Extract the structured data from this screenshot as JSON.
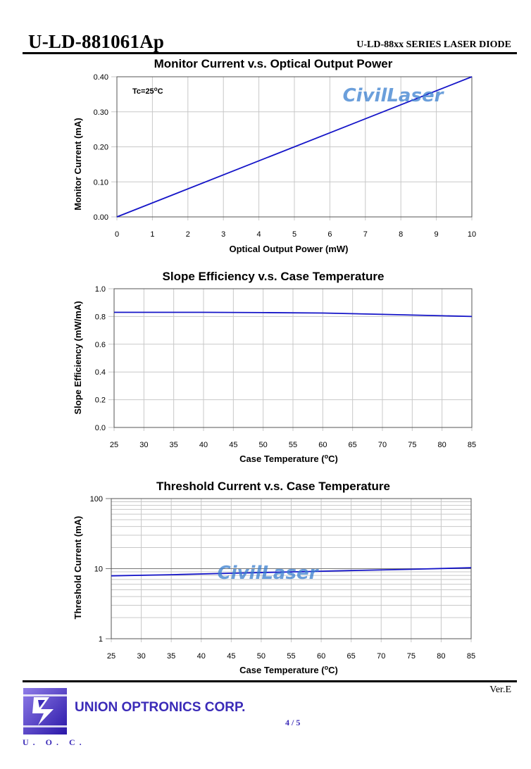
{
  "header": {
    "title": "U-LD-881061Ap",
    "series": "U-LD-88xx SERIES LASER DIODE"
  },
  "watermark": {
    "text": "CivilLaser",
    "color": "#3a7fd0"
  },
  "colors": {
    "series": "#1515c8",
    "grid": "#c8c8c8",
    "axis": "#555555"
  },
  "chart_data": [
    {
      "type": "line",
      "title": "Monitor Current v.s. Optical Output Power",
      "xlabel": "Optical Output Power (mW)",
      "ylabel": "Monitor Current (mA)",
      "xlim": [
        0,
        10
      ],
      "ylim": [
        0,
        0.4
      ],
      "x_ticks": [
        "0",
        "1",
        "2",
        "3",
        "4",
        "5",
        "6",
        "7",
        "8",
        "9",
        "10"
      ],
      "y_ticks": [
        "0.00",
        "0.10",
        "0.20",
        "0.30",
        "0.40"
      ],
      "annotation": "Tc=25",
      "annotation_unit": "C",
      "annotation_degree": "o",
      "series": [
        {
          "x": [
            0,
            10
          ],
          "y": [
            0.0,
            0.4
          ]
        }
      ],
      "grid": true
    },
    {
      "type": "line",
      "title": "Slope Efficiency v.s. Case Temperature",
      "xlabel": "Case Temperature (",
      "xlabel_degree": "o",
      "xlabel_end": "C)",
      "ylabel": "Slope Efficiency (mW/mA)",
      "xlim": [
        25,
        85
      ],
      "ylim": [
        0,
        1.0
      ],
      "x_ticks": [
        "25",
        "30",
        "35",
        "40",
        "45",
        "50",
        "55",
        "60",
        "65",
        "70",
        "75",
        "80",
        "85"
      ],
      "y_ticks": [
        "0.0",
        "0.2",
        "0.4",
        "0.6",
        "0.8",
        "1.0"
      ],
      "series": [
        {
          "x": [
            25,
            40,
            50,
            60,
            70,
            80,
            85
          ],
          "y": [
            0.83,
            0.83,
            0.828,
            0.825,
            0.815,
            0.805,
            0.8
          ]
        }
      ],
      "grid": true
    },
    {
      "type": "line",
      "title": "Threshold Current v.s. Case Temperature",
      "xlabel": "Case Temperature (",
      "xlabel_degree": "o",
      "xlabel_end": "C)",
      "ylabel": "Threshold Current (mA)",
      "xlim": [
        25,
        85
      ],
      "ylim": [
        1,
        100
      ],
      "yscale": "log",
      "x_ticks": [
        "25",
        "30",
        "35",
        "40",
        "45",
        "50",
        "55",
        "60",
        "65",
        "70",
        "75",
        "80",
        "85"
      ],
      "y_ticks": [
        "1",
        "10",
        "100"
      ],
      "series": [
        {
          "x": [
            25,
            35,
            45,
            55,
            65,
            75,
            85
          ],
          "y": [
            7.9,
            8.2,
            8.6,
            9.0,
            9.4,
            9.8,
            10.3
          ]
        }
      ],
      "grid": true
    }
  ],
  "footer": {
    "version": "Ver.E",
    "company": "UNION OPTRONICS CORP.",
    "page": "4 / 5",
    "abbr": "U. O. C."
  }
}
